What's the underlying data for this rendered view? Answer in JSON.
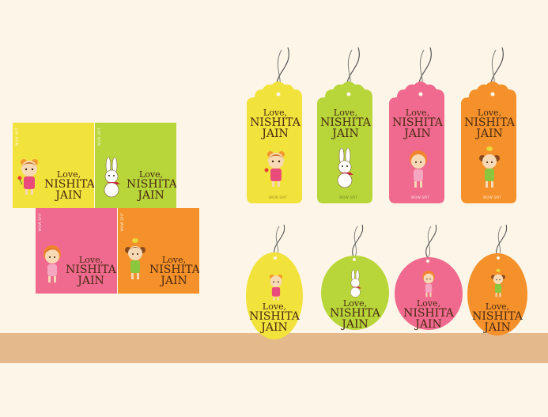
{
  "greeting": "Love,",
  "name_line1": "NISHITA",
  "name_line2": "JAIN",
  "brand": "WOW SPIT",
  "colors": {
    "yellow": "#f2e23c",
    "green": "#b8d63a",
    "pink": "#ef6a8e",
    "orange": "#f5912a",
    "background": "#fdf6e8",
    "shelf": "#e4b98c",
    "text": "#4a2a12"
  },
  "characters": {
    "yellow": "girl-with-flower-icon",
    "green": "bunny-icon",
    "pink": "redhead-girl-icon",
    "orange": "girl-with-bird-icon"
  }
}
